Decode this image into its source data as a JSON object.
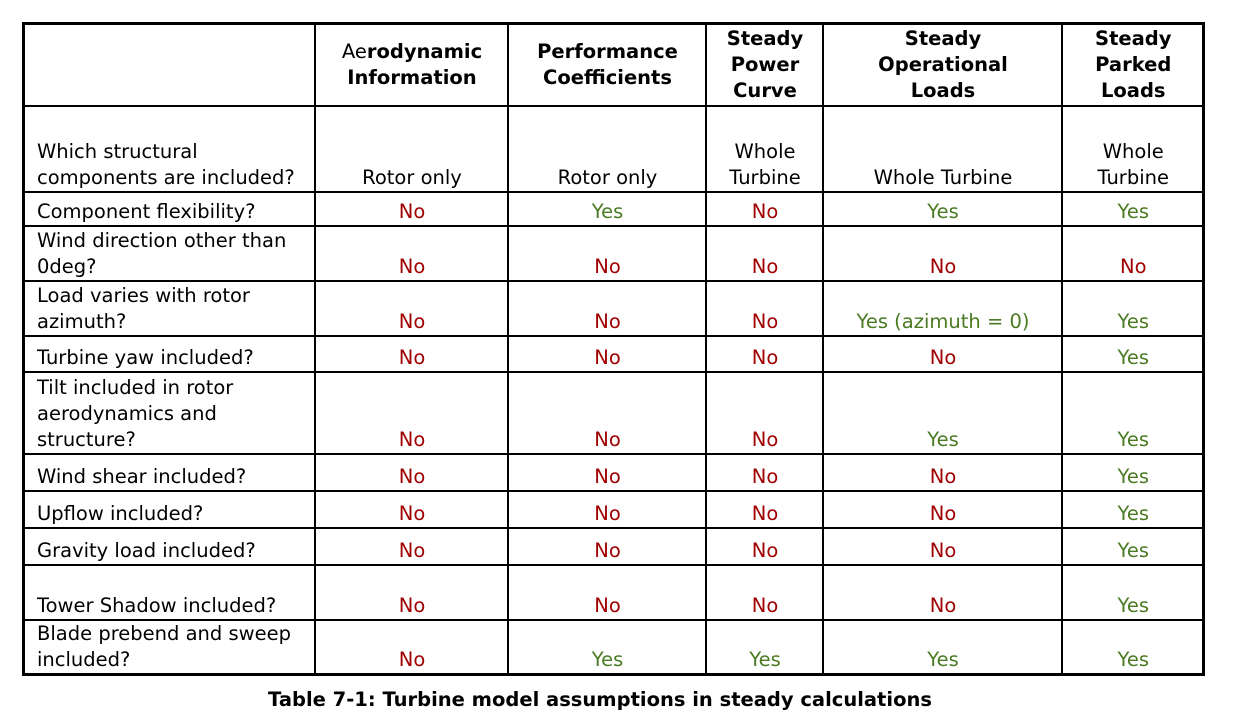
{
  "table": {
    "headers": [
      {
        "prefix": "",
        "label": ""
      },
      {
        "prefix": "Ae",
        "label": "rodynamic Information"
      },
      {
        "prefix": "",
        "label": "Performance Coefficients"
      },
      {
        "prefix": "",
        "label": "Steady Power Curve"
      },
      {
        "prefix": "",
        "label": "Steady Operational Loads"
      },
      {
        "prefix": "",
        "label": "Steady Parked Loads"
      }
    ],
    "rows": [
      {
        "question": "Which structural components are included?",
        "values": [
          "Rotor only",
          "Rotor only",
          "Whole Turbine",
          "Whole Turbine",
          "Whole Turbine"
        ]
      },
      {
        "question": "Component flexibility?",
        "values": [
          "No",
          "Yes",
          "No",
          "Yes",
          "Yes"
        ]
      },
      {
        "question": "Wind direction other than 0deg?",
        "values": [
          "No",
          "No",
          "No",
          "No",
          "No"
        ]
      },
      {
        "question": "Load varies with rotor azimuth?",
        "values": [
          "No",
          "No",
          "No",
          "Yes (azimuth = 0)",
          "Yes"
        ]
      },
      {
        "question": "Turbine yaw included?",
        "values": [
          "No",
          "No",
          "No",
          "No",
          "Yes"
        ]
      },
      {
        "question": "Tilt included in rotor aerodynamics and structure?",
        "values": [
          "No",
          "No",
          "No",
          "Yes",
          "Yes"
        ]
      },
      {
        "question": "Wind shear included?",
        "values": [
          "No",
          "No",
          "No",
          "No",
          "Yes"
        ]
      },
      {
        "question": "Upflow included?",
        "values": [
          "No",
          "No",
          "No",
          "No",
          "Yes"
        ]
      },
      {
        "question": "Gravity load included?",
        "values": [
          "No",
          "No",
          "No",
          "No",
          "Yes"
        ]
      },
      {
        "question": "Tower Shadow included?",
        "values": [
          "No",
          "No",
          "No",
          "No",
          "Yes"
        ]
      },
      {
        "question": "Blade prebend and sweep included?",
        "values": [
          "No",
          "Yes",
          "Yes",
          "Yes",
          "Yes"
        ]
      }
    ]
  },
  "colors": {
    "no": "#a00000",
    "yes": "#4a7a22"
  },
  "caption": "Table 7-1: Turbine model assumptions in steady calculations"
}
